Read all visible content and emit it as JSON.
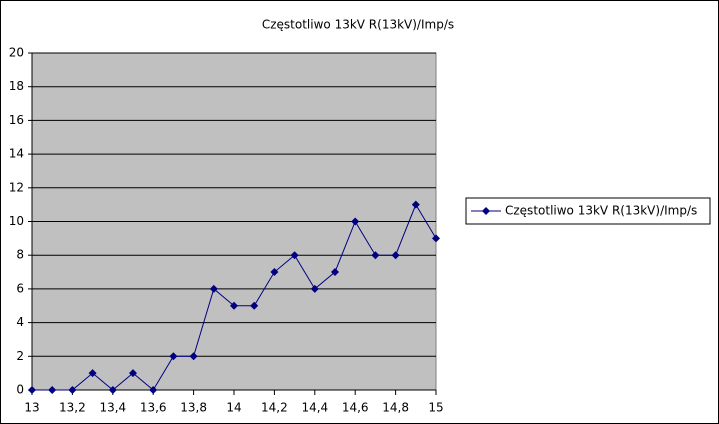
{
  "chart_data": {
    "type": "line",
    "title": "Częstotliwo 13kV R(13kV)/Imp/s",
    "x": [
      13,
      13.1,
      13.2,
      13.3,
      13.4,
      13.5,
      13.6,
      13.7,
      13.8,
      13.9,
      14,
      14.1,
      14.2,
      14.3,
      14.4,
      14.5,
      14.6,
      14.7,
      14.8,
      14.9,
      15
    ],
    "series": [
      {
        "name": "Częstotliwo 13kV R(13kV)/Imp/s",
        "color": "#000080",
        "values": [
          0,
          0,
          0,
          1,
          0,
          1,
          0,
          2,
          2,
          6,
          5,
          5,
          7,
          8,
          6,
          7,
          10,
          8,
          8,
          11,
          9
        ]
      }
    ],
    "xlim": [
      13,
      15
    ],
    "xticks": [
      13,
      {
        "value": 13.2,
        "label": "13,2"
      },
      {
        "value": 13.4,
        "label": "13,4"
      },
      {
        "value": 13.6,
        "label": "13,6"
      },
      {
        "value": 13.8,
        "label": "13,8"
      },
      14,
      {
        "value": 14.2,
        "label": "14,2"
      },
      {
        "value": 14.4,
        "label": "14,4"
      },
      {
        "value": 14.6,
        "label": "14,6"
      },
      {
        "value": 14.8,
        "label": "14,8"
      },
      15
    ],
    "ylim": [
      0,
      20
    ],
    "yticks": [
      0,
      2,
      4,
      6,
      8,
      10,
      12,
      14,
      16,
      18,
      20
    ],
    "grid": true,
    "legend": "right"
  }
}
